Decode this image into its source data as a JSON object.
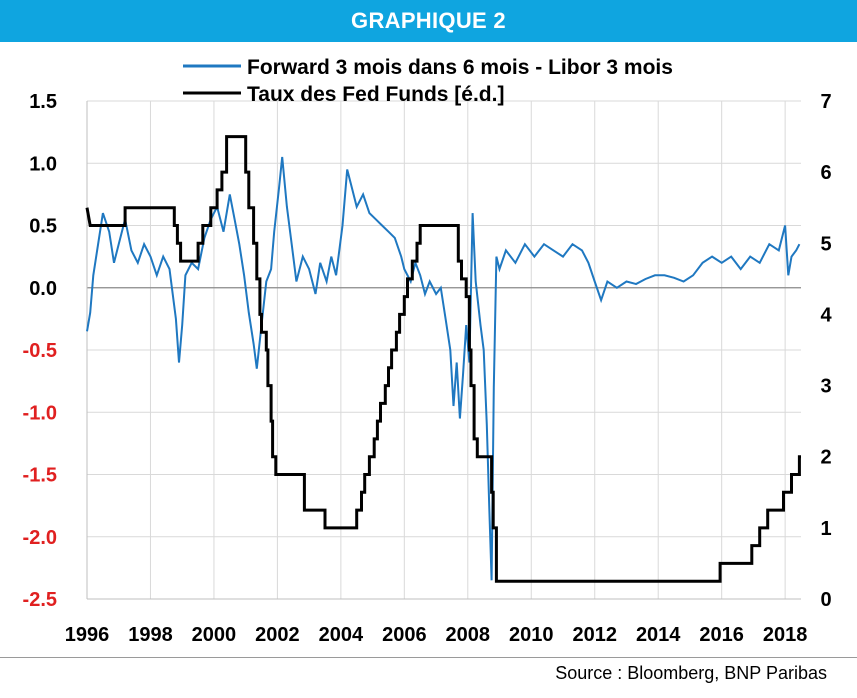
{
  "header": {
    "title": "GRAPHIQUE 2"
  },
  "source": "Source : Bloomberg, BNP Paribas",
  "colors": {
    "header_bg": "#0fa5e0",
    "series_forward": "#1f78c1",
    "series_fed": "#000000",
    "neg_tick": "#e02020"
  },
  "chart_data": {
    "type": "line",
    "title": "",
    "grid": true,
    "legend_position": "top-center",
    "x_axis": {
      "range": [
        1996,
        2018.5
      ],
      "ticks": [
        "1996",
        "1998",
        "2000",
        "2002",
        "2004",
        "2006",
        "2008",
        "2010",
        "2012",
        "2014",
        "2016",
        "2018"
      ]
    },
    "y_axis_left": {
      "range": [
        -2.5,
        1.5
      ],
      "ticks": [
        "1.5",
        "1.0",
        "0.5",
        "0.0",
        "-0.5",
        "-1.0",
        "-1.5",
        "-2.0",
        "-2.5"
      ],
      "negative_tick_color": "red"
    },
    "y_axis_right": {
      "range": [
        0,
        7
      ],
      "ticks": [
        "7",
        "6",
        "5",
        "4",
        "3",
        "2",
        "1",
        "0"
      ]
    },
    "series": [
      {
        "name": "Forward 3 mois dans 6 mois - Libor 3 mois",
        "axis": "left",
        "color": "#1f78c1",
        "points": [
          [
            1996.0,
            -0.35
          ],
          [
            1996.1,
            -0.2
          ],
          [
            1996.2,
            0.1
          ],
          [
            1996.35,
            0.35
          ],
          [
            1996.5,
            0.6
          ],
          [
            1996.7,
            0.45
          ],
          [
            1996.85,
            0.2
          ],
          [
            1997.0,
            0.35
          ],
          [
            1997.2,
            0.55
          ],
          [
            1997.4,
            0.3
          ],
          [
            1997.6,
            0.2
          ],
          [
            1997.8,
            0.35
          ],
          [
            1998.0,
            0.25
          ],
          [
            1998.2,
            0.1
          ],
          [
            1998.4,
            0.25
          ],
          [
            1998.6,
            0.15
          ],
          [
            1998.8,
            -0.25
          ],
          [
            1998.9,
            -0.6
          ],
          [
            1999.0,
            -0.3
          ],
          [
            1999.1,
            0.1
          ],
          [
            1999.3,
            0.2
          ],
          [
            1999.5,
            0.15
          ],
          [
            1999.7,
            0.4
          ],
          [
            1999.9,
            0.55
          ],
          [
            2000.1,
            0.65
          ],
          [
            2000.3,
            0.45
          ],
          [
            2000.5,
            0.75
          ],
          [
            2000.65,
            0.55
          ],
          [
            2000.8,
            0.35
          ],
          [
            2000.95,
            0.1
          ],
          [
            2001.1,
            -0.2
          ],
          [
            2001.25,
            -0.45
          ],
          [
            2001.35,
            -0.65
          ],
          [
            2001.5,
            -0.3
          ],
          [
            2001.65,
            0.05
          ],
          [
            2001.8,
            0.15
          ],
          [
            2001.9,
            0.45
          ],
          [
            2002.05,
            0.8
          ],
          [
            2002.15,
            1.05
          ],
          [
            2002.3,
            0.65
          ],
          [
            2002.45,
            0.35
          ],
          [
            2002.6,
            0.05
          ],
          [
            2002.8,
            0.25
          ],
          [
            2003.0,
            0.15
          ],
          [
            2003.2,
            -0.05
          ],
          [
            2003.35,
            0.2
          ],
          [
            2003.55,
            0.05
          ],
          [
            2003.7,
            0.25
          ],
          [
            2003.85,
            0.1
          ],
          [
            2004.05,
            0.5
          ],
          [
            2004.2,
            0.95
          ],
          [
            2004.35,
            0.8
          ],
          [
            2004.5,
            0.65
          ],
          [
            2004.7,
            0.75
          ],
          [
            2004.9,
            0.6
          ],
          [
            2005.1,
            0.55
          ],
          [
            2005.3,
            0.5
          ],
          [
            2005.5,
            0.45
          ],
          [
            2005.7,
            0.4
          ],
          [
            2005.9,
            0.25
          ],
          [
            2006.0,
            0.15
          ],
          [
            2006.2,
            0.05
          ],
          [
            2006.35,
            0.2
          ],
          [
            2006.5,
            0.1
          ],
          [
            2006.65,
            -0.05
          ],
          [
            2006.8,
            0.05
          ],
          [
            2007.0,
            -0.05
          ],
          [
            2007.15,
            0.0
          ],
          [
            2007.3,
            -0.25
          ],
          [
            2007.45,
            -0.5
          ],
          [
            2007.55,
            -0.95
          ],
          [
            2007.65,
            -0.6
          ],
          [
            2007.75,
            -1.05
          ],
          [
            2007.85,
            -0.7
          ],
          [
            2007.95,
            -0.3
          ],
          [
            2008.05,
            -0.6
          ],
          [
            2008.15,
            0.6
          ],
          [
            2008.25,
            0.05
          ],
          [
            2008.4,
            -0.3
          ],
          [
            2008.5,
            -0.5
          ],
          [
            2008.6,
            -1.1
          ],
          [
            2008.68,
            -1.8
          ],
          [
            2008.75,
            -2.35
          ],
          [
            2008.82,
            -0.8
          ],
          [
            2008.9,
            0.25
          ],
          [
            2009.0,
            0.15
          ],
          [
            2009.2,
            0.3
          ],
          [
            2009.5,
            0.2
          ],
          [
            2009.8,
            0.35
          ],
          [
            2010.1,
            0.25
          ],
          [
            2010.4,
            0.35
          ],
          [
            2010.7,
            0.3
          ],
          [
            2011.0,
            0.25
          ],
          [
            2011.3,
            0.35
          ],
          [
            2011.6,
            0.3
          ],
          [
            2011.8,
            0.2
          ],
          [
            2012.0,
            0.05
          ],
          [
            2012.2,
            -0.1
          ],
          [
            2012.4,
            0.05
          ],
          [
            2012.7,
            0.0
          ],
          [
            2013.0,
            0.05
          ],
          [
            2013.3,
            0.03
          ],
          [
            2013.6,
            0.07
          ],
          [
            2013.9,
            0.1
          ],
          [
            2014.2,
            0.1
          ],
          [
            2014.5,
            0.08
          ],
          [
            2014.8,
            0.05
          ],
          [
            2015.1,
            0.1
          ],
          [
            2015.4,
            0.2
          ],
          [
            2015.7,
            0.25
          ],
          [
            2016.0,
            0.2
          ],
          [
            2016.3,
            0.25
          ],
          [
            2016.6,
            0.15
          ],
          [
            2016.9,
            0.25
          ],
          [
            2017.2,
            0.2
          ],
          [
            2017.5,
            0.35
          ],
          [
            2017.8,
            0.3
          ],
          [
            2018.0,
            0.5
          ],
          [
            2018.1,
            0.1
          ],
          [
            2018.2,
            0.25
          ],
          [
            2018.35,
            0.3
          ],
          [
            2018.45,
            0.35
          ]
        ]
      },
      {
        "name": "Taux des Fed Funds [é.d.]",
        "axis": "right",
        "color": "#000000",
        "points": [
          [
            1996.0,
            5.5
          ],
          [
            1996.1,
            5.25
          ],
          [
            1997.2,
            5.25
          ],
          [
            1997.2,
            5.5
          ],
          [
            1998.75,
            5.5
          ],
          [
            1998.75,
            5.25
          ],
          [
            1998.85,
            5.25
          ],
          [
            1998.85,
            5.0
          ],
          [
            1998.95,
            5.0
          ],
          [
            1998.95,
            4.75
          ],
          [
            1999.5,
            4.75
          ],
          [
            1999.5,
            5.0
          ],
          [
            1999.65,
            5.0
          ],
          [
            1999.65,
            5.25
          ],
          [
            1999.9,
            5.25
          ],
          [
            1999.9,
            5.5
          ],
          [
            2000.1,
            5.5
          ],
          [
            2000.1,
            5.75
          ],
          [
            2000.25,
            5.75
          ],
          [
            2000.25,
            6.0
          ],
          [
            2000.4,
            6.0
          ],
          [
            2000.4,
            6.5
          ],
          [
            2001.0,
            6.5
          ],
          [
            2001.0,
            6.0
          ],
          [
            2001.1,
            6.0
          ],
          [
            2001.1,
            5.5
          ],
          [
            2001.25,
            5.5
          ],
          [
            2001.25,
            5.0
          ],
          [
            2001.35,
            5.0
          ],
          [
            2001.35,
            4.5
          ],
          [
            2001.45,
            4.5
          ],
          [
            2001.45,
            4.0
          ],
          [
            2001.5,
            4.0
          ],
          [
            2001.5,
            3.75
          ],
          [
            2001.65,
            3.75
          ],
          [
            2001.65,
            3.5
          ],
          [
            2001.7,
            3.5
          ],
          [
            2001.7,
            3.0
          ],
          [
            2001.8,
            3.0
          ],
          [
            2001.8,
            2.5
          ],
          [
            2001.85,
            2.5
          ],
          [
            2001.85,
            2.0
          ],
          [
            2001.95,
            2.0
          ],
          [
            2001.95,
            1.75
          ],
          [
            2002.85,
            1.75
          ],
          [
            2002.85,
            1.25
          ],
          [
            2003.5,
            1.25
          ],
          [
            2003.5,
            1.0
          ],
          [
            2004.5,
            1.0
          ],
          [
            2004.5,
            1.25
          ],
          [
            2004.65,
            1.25
          ],
          [
            2004.65,
            1.5
          ],
          [
            2004.75,
            1.5
          ],
          [
            2004.75,
            1.75
          ],
          [
            2004.9,
            1.75
          ],
          [
            2004.9,
            2.0
          ],
          [
            2005.05,
            2.0
          ],
          [
            2005.05,
            2.25
          ],
          [
            2005.15,
            2.25
          ],
          [
            2005.15,
            2.5
          ],
          [
            2005.25,
            2.5
          ],
          [
            2005.25,
            2.75
          ],
          [
            2005.4,
            2.75
          ],
          [
            2005.4,
            3.0
          ],
          [
            2005.5,
            3.0
          ],
          [
            2005.5,
            3.25
          ],
          [
            2005.6,
            3.25
          ],
          [
            2005.6,
            3.5
          ],
          [
            2005.75,
            3.5
          ],
          [
            2005.75,
            3.75
          ],
          [
            2005.85,
            3.75
          ],
          [
            2005.85,
            4.0
          ],
          [
            2006.0,
            4.0
          ],
          [
            2006.0,
            4.25
          ],
          [
            2006.1,
            4.25
          ],
          [
            2006.1,
            4.5
          ],
          [
            2006.25,
            4.5
          ],
          [
            2006.25,
            4.75
          ],
          [
            2006.4,
            4.75
          ],
          [
            2006.4,
            5.0
          ],
          [
            2006.5,
            5.0
          ],
          [
            2006.5,
            5.25
          ],
          [
            2007.7,
            5.25
          ],
          [
            2007.7,
            4.75
          ],
          [
            2007.8,
            4.75
          ],
          [
            2007.8,
            4.5
          ],
          [
            2007.95,
            4.5
          ],
          [
            2007.95,
            4.25
          ],
          [
            2008.05,
            4.25
          ],
          [
            2008.05,
            3.5
          ],
          [
            2008.1,
            3.5
          ],
          [
            2008.1,
            3.0
          ],
          [
            2008.2,
            3.0
          ],
          [
            2008.2,
            2.25
          ],
          [
            2008.3,
            2.25
          ],
          [
            2008.3,
            2.0
          ],
          [
            2008.75,
            2.0
          ],
          [
            2008.75,
            1.5
          ],
          [
            2008.8,
            1.5
          ],
          [
            2008.8,
            1.0
          ],
          [
            2008.9,
            1.0
          ],
          [
            2008.9,
            0.25
          ],
          [
            2015.95,
            0.25
          ],
          [
            2015.95,
            0.5
          ],
          [
            2016.95,
            0.5
          ],
          [
            2016.95,
            0.75
          ],
          [
            2017.2,
            0.75
          ],
          [
            2017.2,
            1.0
          ],
          [
            2017.45,
            1.0
          ],
          [
            2017.45,
            1.25
          ],
          [
            2017.95,
            1.25
          ],
          [
            2017.95,
            1.5
          ],
          [
            2018.2,
            1.5
          ],
          [
            2018.2,
            1.75
          ],
          [
            2018.45,
            1.75
          ],
          [
            2018.45,
            2.0
          ],
          [
            2018.5,
            2.0
          ]
        ]
      }
    ]
  }
}
